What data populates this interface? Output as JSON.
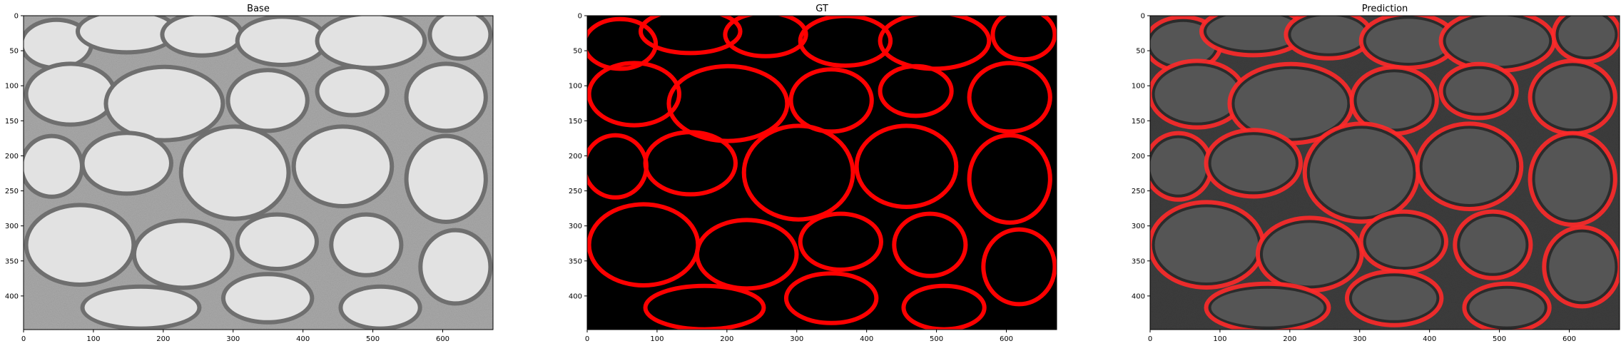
{
  "figure": {
    "panels": [
      {
        "title": "Base",
        "image": "grayscale-electron-micrograph-axons",
        "background": "#a9a9a9"
      },
      {
        "title": "GT",
        "image": "red-membrane-mask-on-black",
        "background": "#000000",
        "overlay_color": "#ff0000"
      },
      {
        "title": "Prediction",
        "image": "micrograph-with-red-predicted-membranes",
        "background": "#3d3d3d",
        "overlay_color": "#ff2a2a"
      }
    ],
    "x_ticks": [
      "0",
      "100",
      "200",
      "300",
      "400",
      "500",
      "600"
    ],
    "y_ticks": [
      "0",
      "50",
      "100",
      "150",
      "200",
      "250",
      "300",
      "350",
      "400"
    ],
    "x_range": [
      0,
      672
    ],
    "y_range": [
      448,
      0
    ]
  }
}
